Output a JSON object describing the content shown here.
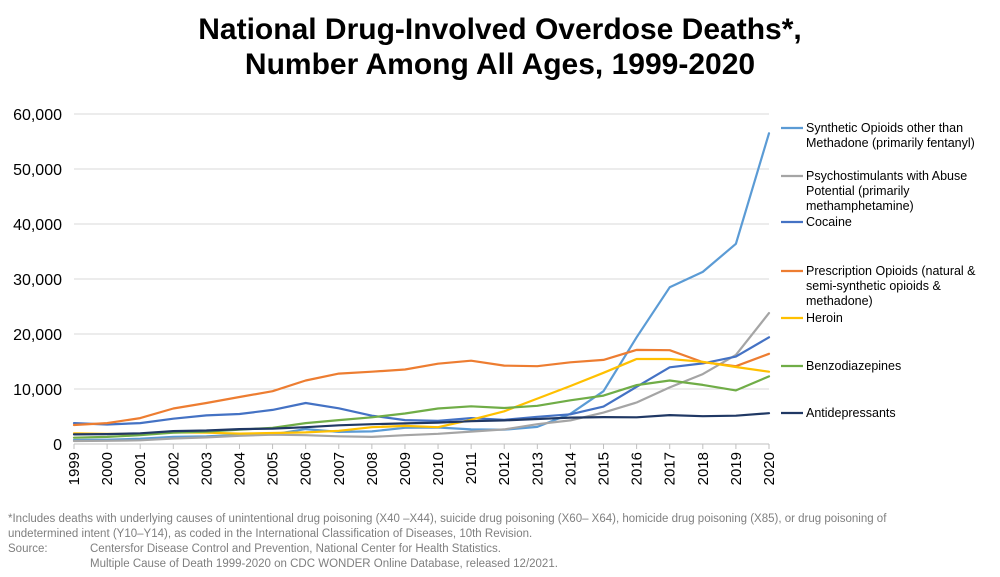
{
  "title_lines": [
    "National Drug-Involved Overdose Deaths*,",
    "Number Among All Ages, 1999-2020"
  ],
  "footnote": {
    "line1": "*Includes deaths with underlying causes of unintentional drug poisoning (X40 –X44), suicide drug poisoning (X60– X64), homicide drug poisoning (X85), or drug poisoning of",
    "line2": "undetermined intent (Y10–Y14), as coded in the International Classification of Diseases, 10th Revision.",
    "source_label": "Source:",
    "source_line1": "Centersfor Disease Control and Prevention, National Center for Health Statistics.",
    "source_line2": "Multiple Cause of Death 1999-2020 on CDC WONDER Online Database, released 12/2021."
  },
  "chart_data": {
    "type": "line",
    "x": [
      1999,
      2000,
      2001,
      2002,
      2003,
      2004,
      2005,
      2006,
      2007,
      2008,
      2009,
      2010,
      2011,
      2012,
      2013,
      2014,
      2015,
      2016,
      2017,
      2018,
      2019,
      2020
    ],
    "ylim": [
      0,
      60000
    ],
    "yticks": [
      0,
      10000,
      20000,
      30000,
      40000,
      50000,
      60000
    ],
    "ytick_labels": [
      "0",
      "10,000",
      "20,000",
      "30,000",
      "40,000",
      "50,000",
      "60,000"
    ],
    "grid": true,
    "legend_position": "right",
    "series": [
      {
        "name": "Synthetic Opioids other than Methadone (primarily fentanyl)",
        "legend_lines": [
          "Synthetic Opioids other than",
          "Methadone (primarily fentanyl)"
        ],
        "color": "#5b9bd5",
        "values": [
          730,
          780,
          960,
          1300,
          1400,
          1660,
          1740,
          2700,
          2200,
          2300,
          2950,
          3000,
          2650,
          2600,
          3100,
          5500,
          9600,
          19400,
          28500,
          31300,
          36400,
          56500
        ]
      },
      {
        "name": "Psychostimulants with Abuse Potential (primarily methamphetamine)",
        "legend_lines": [
          "Psychostimulants with Abuse",
          "Potential (primarily",
          "methamphetamine)"
        ],
        "color": "#a5a5a5",
        "values": [
          550,
          580,
          680,
          1000,
          1200,
          1500,
          1700,
          1600,
          1400,
          1300,
          1600,
          1850,
          2250,
          2650,
          3600,
          4300,
          5700,
          7550,
          10300,
          12700,
          16200,
          23800
        ]
      },
      {
        "name": "Cocaine",
        "legend_lines": [
          "Cocaine"
        ],
        "color": "#4472c4",
        "values": [
          3800,
          3550,
          3800,
          4600,
          5200,
          5450,
          6200,
          7450,
          6500,
          5150,
          4350,
          4200,
          4700,
          4400,
          4950,
          5400,
          6800,
          10400,
          13950,
          14650,
          15900,
          19400
        ]
      },
      {
        "name": "Prescription Opioids (natural & semi-synthetic opioids & methadone)",
        "legend_lines": [
          "Prescription Opioids (natural &",
          "semi-synthetic opioids &",
          "methadone)"
        ],
        "color": "#ed7d31",
        "values": [
          3450,
          3800,
          4700,
          6450,
          7450,
          8550,
          9600,
          11550,
          12800,
          13150,
          13550,
          14600,
          15150,
          14250,
          14150,
          14850,
          15300,
          17100,
          17050,
          14900,
          14150,
          16400
        ]
      },
      {
        "name": "Heroin",
        "legend_lines": [
          "Heroin"
        ],
        "color": "#ffc000",
        "values": [
          1950,
          1850,
          1800,
          2100,
          2050,
          1900,
          2000,
          2100,
          2400,
          3050,
          3300,
          3050,
          4400,
          5950,
          8250,
          10550,
          12950,
          15450,
          15450,
          14950,
          14000,
          13150
        ]
      },
      {
        "name": "Benzodiazepines",
        "legend_lines": [
          "Benzodiazepines"
        ],
        "color": "#70ad47",
        "values": [
          1150,
          1300,
          1600,
          2050,
          2250,
          2600,
          2950,
          3800,
          4350,
          4850,
          5550,
          6450,
          6850,
          6550,
          6950,
          7950,
          8800,
          10700,
          11550,
          10750,
          9750,
          12300
        ]
      },
      {
        "name": "Antidepressants",
        "legend_lines": [
          "Antidepressants"
        ],
        "color": "#203864",
        "values": [
          1750,
          1800,
          1950,
          2350,
          2450,
          2700,
          2800,
          3050,
          3400,
          3600,
          3750,
          3900,
          4150,
          4300,
          4550,
          4800,
          4900,
          4850,
          5250,
          5050,
          5150,
          5600
        ]
      }
    ]
  }
}
